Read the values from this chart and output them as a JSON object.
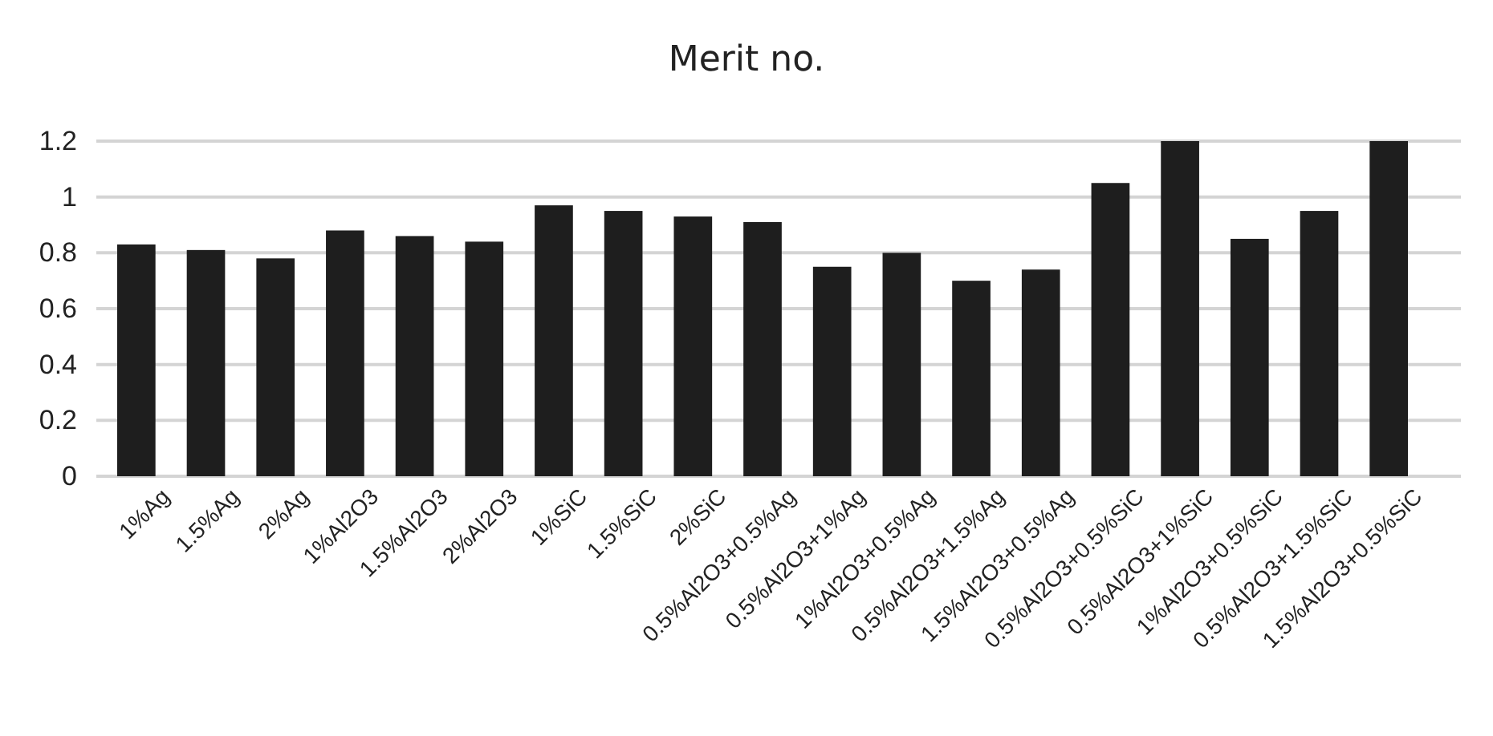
{
  "chart_data": {
    "type": "bar",
    "title": "Merit no.",
    "categories": [
      "1%Ag",
      "1.5%Ag",
      "2%Ag",
      "1%Al2O3",
      "1.5%Al2O3",
      "2%Al2O3",
      "1%SiC",
      "1.5%SiC",
      "2%SiC",
      "0.5%Al2O3+0.5%Ag",
      "0.5%Al2O3+1%Ag",
      "1%Al2O3+0.5%Ag",
      "0.5%Al2O3+1.5%Ag",
      "1.5%Al2O3+0.5%Ag",
      "0.5%Al2O3+0.5%SiC",
      "0.5%Al2O3+1%SiC",
      "1%Al2O3+0.5%SiC",
      "0.5%Al2O3+1.5%SiC",
      "1.5%Al2O3+0.5%SiC"
    ],
    "values": [
      0.83,
      0.81,
      0.78,
      0.88,
      0.86,
      0.84,
      0.97,
      0.95,
      0.93,
      0.91,
      0.75,
      0.8,
      0.7,
      0.74,
      1.05,
      1.2,
      0.85,
      0.95,
      1.2
    ],
    "color": "#1e1e1e",
    "ylim": [
      0,
      1.2
    ],
    "yticks": [
      0,
      0.2,
      0.4,
      0.6,
      0.8,
      1,
      1.2
    ],
    "grid": "y"
  }
}
